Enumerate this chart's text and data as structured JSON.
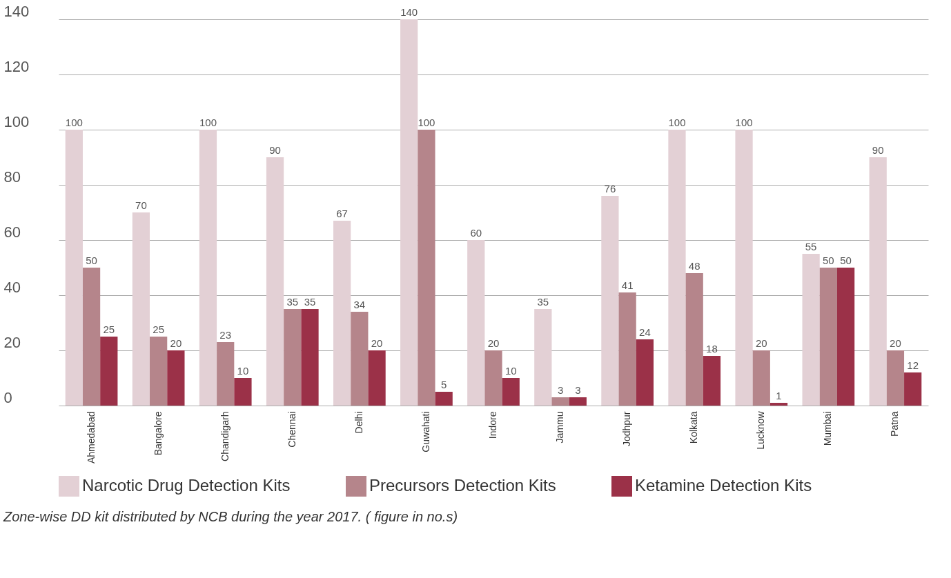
{
  "chart_data": {
    "type": "bar",
    "categories": [
      "Ahmedabad",
      "Bangalore",
      "Chandigarh",
      "Chennai",
      "Delhi",
      "Guwahati",
      "Indore",
      "Jammu",
      "Jodhpur",
      "Kolkata",
      "Lucknow",
      "Mumbai",
      "Patna"
    ],
    "series": [
      {
        "name": "Narcotic Drug Detection Kits",
        "color": "#e3d0d5",
        "values": [
          100,
          70,
          100,
          90,
          67,
          140,
          60,
          35,
          76,
          100,
          100,
          55,
          90
        ]
      },
      {
        "name": "Precursors Detection Kits",
        "color": "#b5858b",
        "values": [
          50,
          25,
          23,
          35,
          34,
          100,
          20,
          3,
          41,
          48,
          20,
          50,
          20
        ]
      },
      {
        "name": "Ketamine Detection Kits",
        "color": "#9b3148",
        "values": [
          25,
          20,
          10,
          35,
          20,
          5,
          10,
          3,
          24,
          18,
          1,
          50,
          12
        ]
      }
    ],
    "ylim": [
      0,
      140
    ],
    "yticks": [
      0,
      20,
      40,
      60,
      80,
      100,
      120,
      140
    ],
    "grid": "y",
    "legend": "bottom",
    "data_labels": true,
    "annotations": [
      "Zone-wise DD kit distributed by NCB during the year 2017. ( figure in no.s)"
    ]
  }
}
